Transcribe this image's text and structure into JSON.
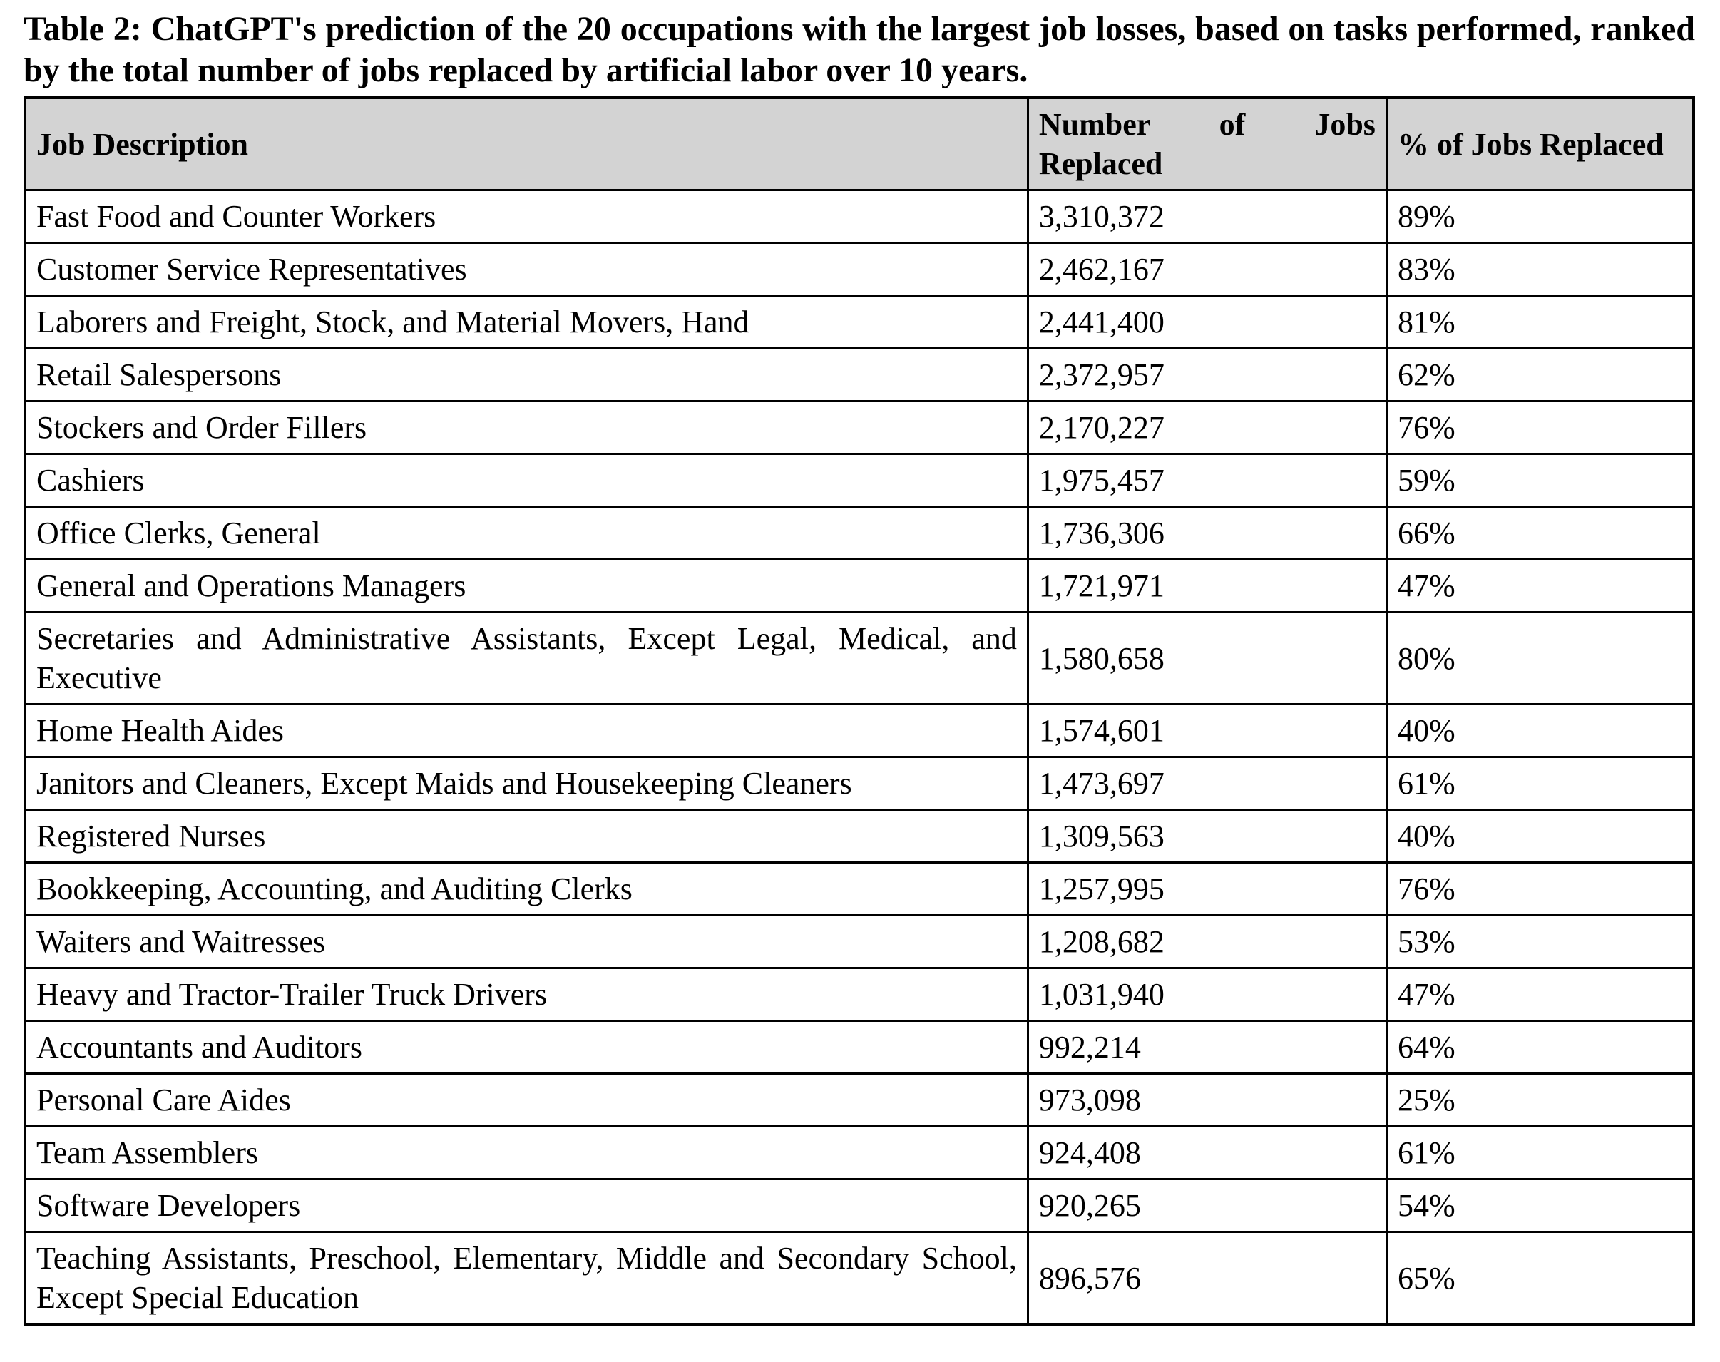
{
  "caption": "Table 2: ChatGPT's prediction of the 20 occupations with the largest job losses, based on tasks performed, ranked by the total number of jobs replaced by artificial labor over 10 years.",
  "table": {
    "headers": [
      "Job Description",
      "Number of Jobs Replaced",
      "% of Jobs Replaced"
    ],
    "rows": [
      {
        "job": "Fast Food and Counter Workers",
        "number": "3,310,372",
        "pct": "89%"
      },
      {
        "job": "Customer Service Representatives",
        "number": "2,462,167",
        "pct": "83%"
      },
      {
        "job": "Laborers and Freight, Stock, and Material Movers, Hand",
        "number": "2,441,400",
        "pct": "81%"
      },
      {
        "job": "Retail Salespersons",
        "number": "2,372,957",
        "pct": "62%"
      },
      {
        "job": "Stockers and Order Fillers",
        "number": "2,170,227",
        "pct": "76%"
      },
      {
        "job": "Cashiers",
        "number": "1,975,457",
        "pct": "59%"
      },
      {
        "job": "Office Clerks, General",
        "number": "1,736,306",
        "pct": "66%"
      },
      {
        "job": "General and Operations Managers",
        "number": "1,721,971",
        "pct": "47%"
      },
      {
        "job": "Secretaries and Administrative Assistants, Except Legal, Medical, and Executive",
        "number": "1,580,658",
        "pct": "80%"
      },
      {
        "job": "Home Health Aides",
        "number": "1,574,601",
        "pct": "40%"
      },
      {
        "job": "Janitors and Cleaners, Except Maids and Housekeeping Cleaners",
        "number": "1,473,697",
        "pct": "61%"
      },
      {
        "job": "Registered Nurses",
        "number": "1,309,563",
        "pct": "40%"
      },
      {
        "job": "Bookkeeping, Accounting, and Auditing Clerks",
        "number": "1,257,995",
        "pct": "76%"
      },
      {
        "job": "Waiters and Waitresses",
        "number": "1,208,682",
        "pct": "53%"
      },
      {
        "job": "Heavy and Tractor-Trailer Truck Drivers",
        "number": "1,031,940",
        "pct": "47%"
      },
      {
        "job": "Accountants and Auditors",
        "number": "992,214",
        "pct": "64%"
      },
      {
        "job": "Personal Care Aides",
        "number": "973,098",
        "pct": "25%"
      },
      {
        "job": "Team Assemblers",
        "number": "924,408",
        "pct": "61%"
      },
      {
        "job": "Software Developers",
        "number": "920,265",
        "pct": "54%"
      },
      {
        "job": "Teaching Assistants, Preschool, Elementary, Middle and Secondary School, Except Special Education",
        "number": "896,576",
        "pct": "65%"
      }
    ]
  },
  "colors": {
    "header_bg": "#d3d3d3",
    "border": "#000000",
    "text": "#000000",
    "page_bg": "#ffffff"
  }
}
